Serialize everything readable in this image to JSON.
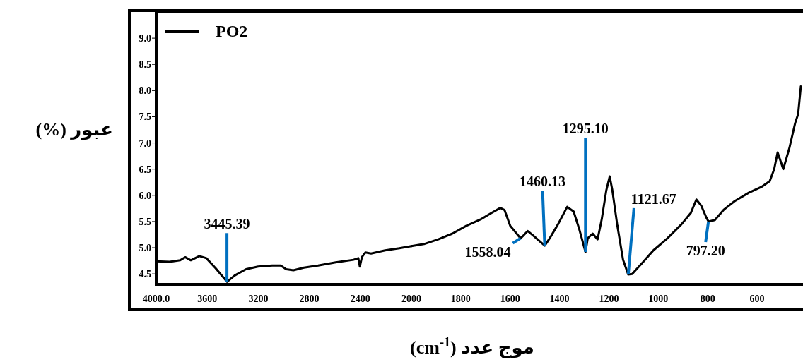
{
  "chart_data": [
    {
      "type": "line",
      "ylabel": "(%) عبور",
      "xlim": [
        4000,
        2000
      ],
      "ylim": [
        4.3,
        9.5
      ],
      "xticks": [
        {
          "value": 4000,
          "label": "4000.0"
        },
        3600,
        3200,
        2800,
        2400
      ],
      "yticks": [
        {
          "value": 4.5,
          "label": "4.5"
        },
        {
          "value": 5,
          "label": "5.0"
        },
        {
          "value": 5.5,
          "label": "5.5"
        },
        {
          "value": 6,
          "label": "6.0"
        },
        {
          "value": 6.5,
          "label": "6.5"
        },
        {
          "value": 7,
          "label": "7.0"
        },
        {
          "value": 7.5,
          "label": "7.5"
        },
        {
          "value": 8,
          "label": "8.0"
        },
        {
          "value": 8.5,
          "label": "8.5"
        },
        {
          "value": 9,
          "label": "9.0"
        }
      ],
      "legend": "top left",
      "x": [
        4000,
        3895,
        3812,
        3773,
        3729,
        3662,
        3607,
        3535,
        3445,
        3385,
        3296,
        3202,
        3091,
        3025,
        2981,
        2925,
        2842,
        2731,
        2593,
        2454,
        2416,
        2404,
        2388,
        2360,
        2316,
        2205,
        2094,
        2000
      ],
      "series": [
        {
          "name": "PO2",
          "color": "#000000",
          "values": [
            4.74,
            4.73,
            4.76,
            4.82,
            4.76,
            4.84,
            4.8,
            4.61,
            4.35,
            4.47,
            4.59,
            4.64,
            4.66,
            4.66,
            4.59,
            4.57,
            4.62,
            4.66,
            4.72,
            4.77,
            4.8,
            4.64,
            4.82,
            4.91,
            4.89,
            4.95,
            4.99,
            5.03
          ]
        }
      ],
      "annotations": [
        {
          "text": "3445.39",
          "x": 3445.39,
          "y": 4.35
        }
      ]
    },
    {
      "type": "line",
      "xlabel": "(cm$^{-1}$) موج عدد",
      "xlim": [
        2000,
        420
      ],
      "ylim": [
        4.3,
        9.5
      ],
      "tick_labels": "x",
      "xticks": [
        2000,
        1800,
        1600,
        1400,
        1200,
        1000,
        800,
        600
      ],
      "x": [
        2000,
        1949,
        1891,
        1834,
        1777,
        1720,
        1677,
        1640,
        1623,
        1600,
        1558,
        1549,
        1529,
        1509,
        1460,
        1440,
        1406,
        1369,
        1343,
        1320,
        1295,
        1286,
        1266,
        1246,
        1229,
        1211,
        1197,
        1186,
        1166,
        1143,
        1122,
        1106,
        1063,
        1020,
        963,
        906,
        869,
        846,
        826,
        806,
        797,
        771,
        734,
        691,
        634,
        583,
        549,
        531,
        517,
        494,
        469,
        446,
        434,
        423
      ],
      "series": [
        {
          "color": "#000000",
          "values": [
            5.03,
            5.07,
            5.16,
            5.27,
            5.42,
            5.54,
            5.66,
            5.76,
            5.72,
            5.42,
            5.18,
            5.22,
            5.32,
            5.24,
            5.04,
            5.18,
            5.45,
            5.78,
            5.69,
            5.35,
            4.92,
            5.18,
            5.27,
            5.16,
            5.55,
            6.09,
            6.36,
            6.09,
            5.42,
            4.77,
            4.49,
            4.5,
            4.72,
            4.95,
            5.18,
            5.45,
            5.66,
            5.92,
            5.8,
            5.58,
            5.5,
            5.53,
            5.73,
            5.89,
            6.05,
            6.16,
            6.27,
            6.5,
            6.82,
            6.5,
            6.91,
            7.38,
            7.55,
            8.08
          ]
        }
      ],
      "annotations": [
        {
          "text": "1558.04",
          "x": 1558.04,
          "y": 5.18
        },
        {
          "text": "1460.13",
          "x": 1460.13,
          "y": 5.04
        },
        {
          "text": "1295.10",
          "x": 1295.1,
          "y": 4.92
        },
        {
          "text": "1121.67",
          "x": 1121.67,
          "y": 4.49
        },
        {
          "text": "797.20",
          "x": 797.2,
          "y": 5.5
        }
      ]
    }
  ]
}
